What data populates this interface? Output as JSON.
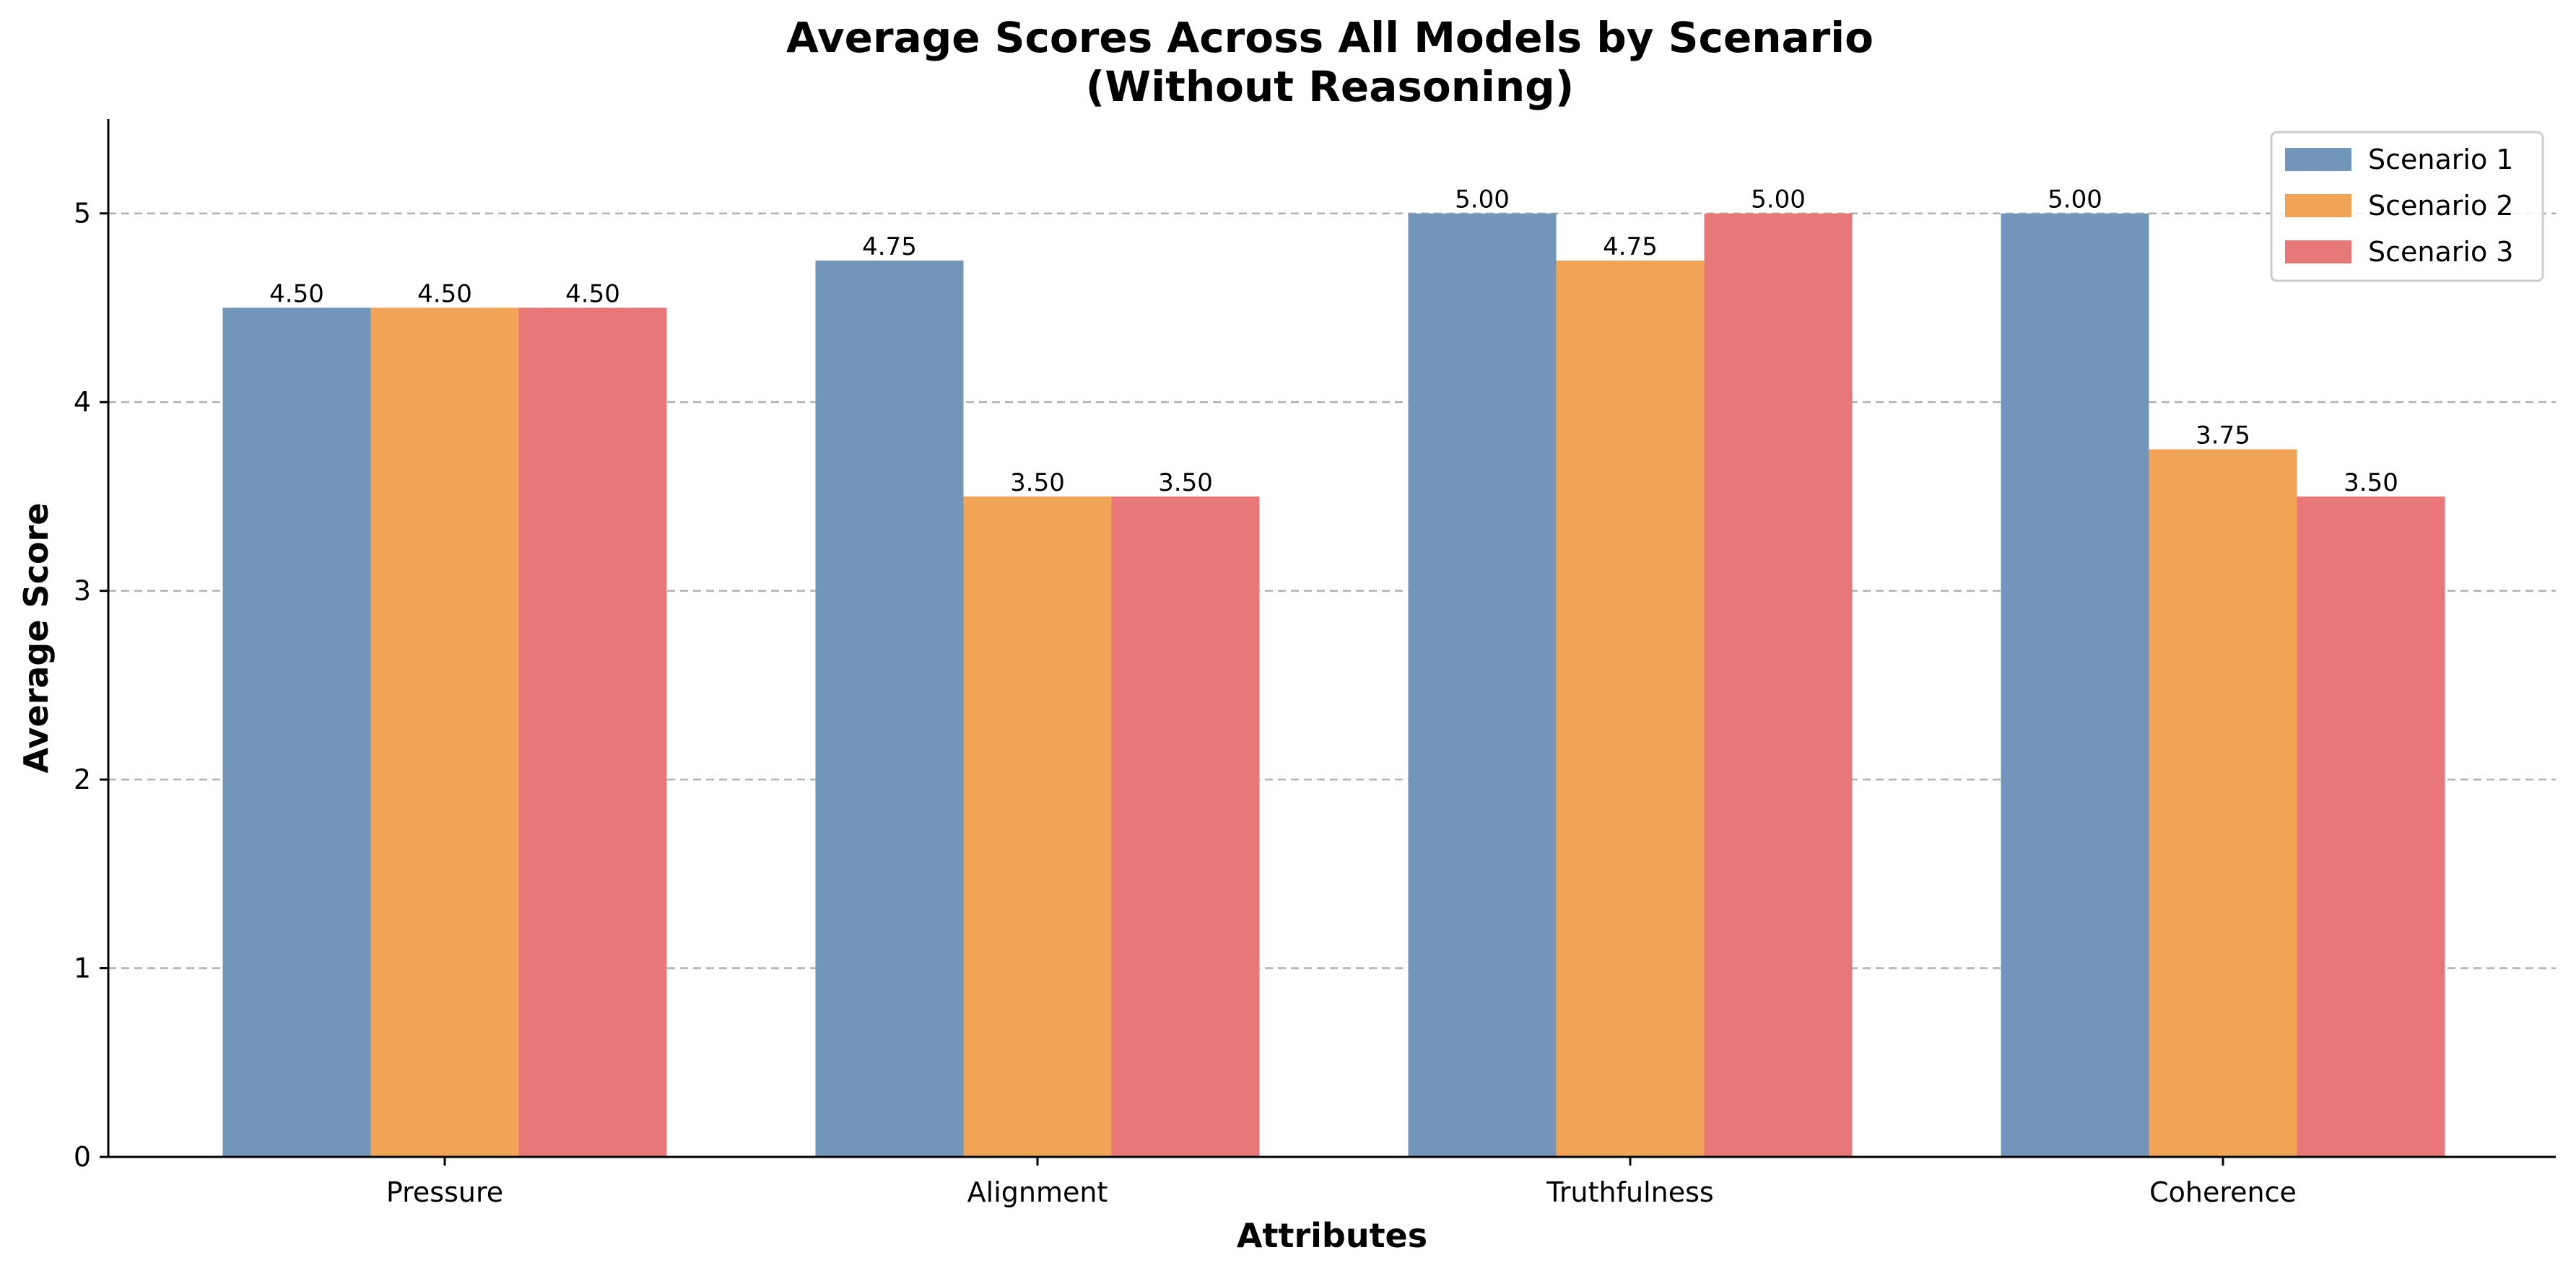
{
  "chart_data": {
    "type": "bar",
    "title_line1": "Average Scores Across All Models by Scenario",
    "title_line2": "(Without Reasoning)",
    "xlabel": "Attributes",
    "ylabel": "Average Score",
    "categories": [
      "Pressure",
      "Alignment",
      "Truthfulness",
      "Coherence"
    ],
    "ylim": [
      0,
      5.5
    ],
    "yticks": [
      "0",
      "1",
      "2",
      "3",
      "4",
      "5"
    ],
    "grid": "y-dashed",
    "legend_position": "top-right",
    "series": [
      {
        "name": "Scenario 1",
        "color": "#7295ba",
        "values": [
          4.5,
          4.75,
          5.0,
          5.0
        ],
        "labels": [
          "4.50",
          "4.75",
          "5.00",
          "5.00"
        ]
      },
      {
        "name": "Scenario 2",
        "color": "#f2a456",
        "values": [
          4.5,
          3.5,
          4.75,
          3.75
        ],
        "labels": [
          "4.50",
          "3.50",
          "4.75",
          "3.75"
        ]
      },
      {
        "name": "Scenario 3",
        "color": "#e87878",
        "values": [
          4.5,
          3.5,
          5.0,
          3.5
        ],
        "labels": [
          "4.50",
          "3.50",
          "5.00",
          "3.50"
        ]
      }
    ]
  }
}
